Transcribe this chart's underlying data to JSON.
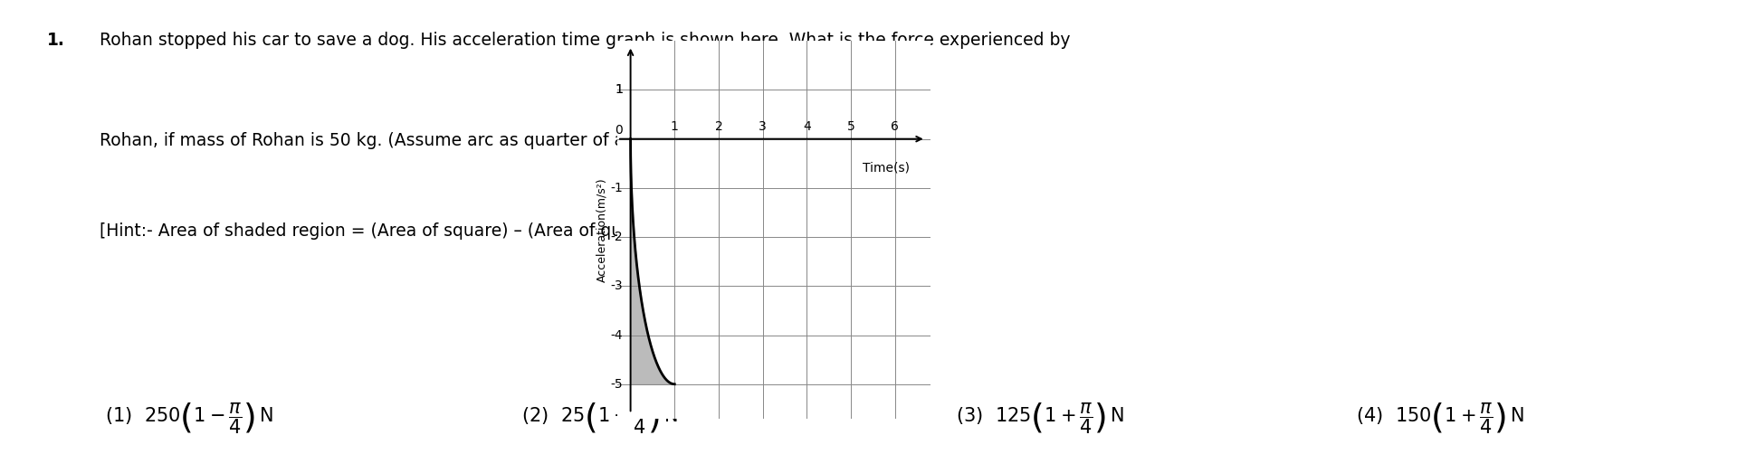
{
  "background_color": "#ffffff",
  "question_number": "1.",
  "question_text_line1": "Rohan stopped his car to save a dog. His acceleration time graph is shown here. What is the force experienced by",
  "question_text_line2": "Rohan, if mass of Rohan is 50 kg. (Assume arc as quarter of a circle.)",
  "question_text_line3": "[Hint:- Area of shaded region = (Area of square) – (Area of quarter of circle)]",
  "graph": {
    "xticks": [
      1,
      2,
      3,
      4,
      5,
      6
    ],
    "yticks": [
      -5,
      -4,
      -3,
      -2,
      -1,
      1
    ],
    "xlabel": "Time(s)",
    "ylabel": "Acceleration(m/s²)",
    "shaded_color": "#b0b0b0",
    "curve_color": "#000000"
  },
  "text_color": "#000000",
  "question_fontsize": 13.5,
  "option_fontsize": 15
}
